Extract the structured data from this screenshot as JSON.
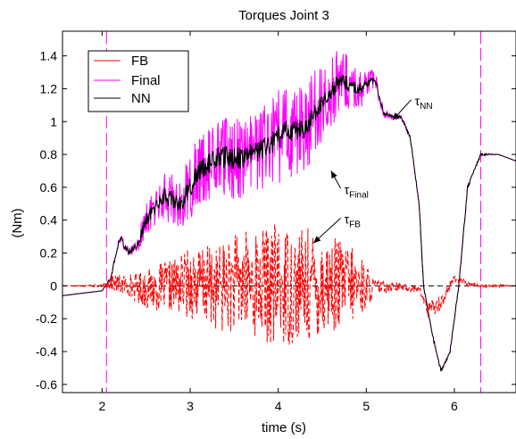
{
  "chart_data": {
    "type": "line",
    "title": "Torques Joint 3",
    "xlabel": "time (s)",
    "ylabel": "(Nm)",
    "xlim": [
      1.55,
      6.7
    ],
    "ylim": [
      -0.65,
      1.55
    ],
    "xticks": [
      "2",
      "3",
      "4",
      "5",
      "6"
    ],
    "xtick_values": [
      2,
      3,
      4,
      5,
      6
    ],
    "yticks": [
      "-0.6",
      "-0.4",
      "-0.2",
      "0",
      "0.2",
      "0.4",
      "0.6",
      "0.8",
      "1",
      "1.2",
      "1.4"
    ],
    "ytick_values": [
      -0.6,
      -0.4,
      -0.2,
      0,
      0.2,
      0.4,
      0.6,
      0.8,
      1,
      1.2,
      1.4
    ],
    "grid": false,
    "legend_position": "top-left",
    "vertical_markers": [
      2.05,
      6.3
    ],
    "series": [
      {
        "name": "FB",
        "color": "#ff0000",
        "style": "dashed-noisy",
        "x": [
          1.55,
          2.0,
          2.1,
          2.3,
          2.5,
          2.8,
          3.0,
          3.3,
          3.6,
          4.0,
          4.3,
          4.6,
          4.9,
          5.1,
          5.3,
          5.6,
          5.7,
          5.85,
          6.0,
          6.1,
          6.3,
          6.5,
          6.7
        ],
        "values": [
          0.0,
          0.0,
          0.02,
          0.0,
          -0.02,
          0.0,
          0.02,
          -0.01,
          0.02,
          0.0,
          0.0,
          0.01,
          0.0,
          -0.01,
          0.0,
          -0.02,
          -0.15,
          -0.1,
          0.05,
          0.02,
          0.0,
          0.0,
          0.0
        ],
        "noise_amplitude": [
          0.0,
          0.01,
          0.05,
          0.07,
          0.12,
          0.16,
          0.22,
          0.26,
          0.32,
          0.38,
          0.36,
          0.3,
          0.22,
          0.05,
          0.03,
          0.02,
          0.05,
          0.05,
          0.02,
          0.02,
          0.01,
          0.01,
          0.0
        ]
      },
      {
        "name": "Final",
        "color": "#ff00ff",
        "style": "solid-noisy",
        "x": [
          1.55,
          2.0,
          2.1,
          2.2,
          2.3,
          2.4,
          2.5,
          2.7,
          2.9,
          3.1,
          3.3,
          3.6,
          3.9,
          4.1,
          4.3,
          4.5,
          4.7,
          4.9,
          5.1,
          5.2,
          5.4,
          5.5,
          5.6,
          5.65,
          5.75,
          5.85,
          5.95,
          6.05,
          6.15,
          6.3,
          6.5,
          6.7
        ],
        "values": [
          -0.06,
          -0.03,
          0.05,
          0.3,
          0.2,
          0.25,
          0.4,
          0.55,
          0.5,
          0.7,
          0.78,
          0.78,
          0.85,
          0.95,
          0.95,
          1.12,
          1.25,
          1.2,
          1.25,
          1.05,
          1.02,
          0.9,
          0.5,
          0.0,
          -0.3,
          -0.52,
          -0.4,
          0.0,
          0.6,
          0.8,
          0.8,
          0.76
        ],
        "noise_amplitude": [
          0.0,
          0.0,
          0.01,
          0.03,
          0.03,
          0.06,
          0.1,
          0.14,
          0.18,
          0.22,
          0.24,
          0.26,
          0.28,
          0.3,
          0.28,
          0.25,
          0.2,
          0.14,
          0.06,
          0.03,
          0.02,
          0.01,
          0.01,
          0.01,
          0.01,
          0.01,
          0.01,
          0.01,
          0.01,
          0.01,
          0.0,
          0.0
        ]
      },
      {
        "name": "NN",
        "color": "#000000",
        "style": "solid-light-noise",
        "x": [
          1.55,
          2.0,
          2.1,
          2.2,
          2.3,
          2.4,
          2.5,
          2.7,
          2.9,
          3.1,
          3.3,
          3.6,
          3.9,
          4.1,
          4.3,
          4.5,
          4.7,
          4.9,
          5.1,
          5.2,
          5.4,
          5.5,
          5.6,
          5.65,
          5.75,
          5.85,
          5.95,
          6.05,
          6.15,
          6.3,
          6.5,
          6.7
        ],
        "values": [
          -0.06,
          -0.03,
          0.05,
          0.3,
          0.2,
          0.25,
          0.4,
          0.55,
          0.5,
          0.7,
          0.78,
          0.78,
          0.85,
          0.95,
          0.95,
          1.12,
          1.25,
          1.2,
          1.25,
          1.05,
          1.02,
          0.9,
          0.5,
          0.0,
          -0.3,
          -0.52,
          -0.4,
          0.0,
          0.6,
          0.8,
          0.8,
          0.76
        ],
        "noise_amplitude": [
          0.0,
          0.0,
          0.01,
          0.02,
          0.02,
          0.03,
          0.04,
          0.05,
          0.06,
          0.06,
          0.07,
          0.07,
          0.07,
          0.07,
          0.06,
          0.05,
          0.05,
          0.04,
          0.02,
          0.01,
          0.01,
          0.01,
          0.01,
          0.01,
          0.01,
          0.01,
          0.01,
          0.01,
          0.01,
          0.01,
          0.0,
          0.0
        ]
      }
    ],
    "annotations": [
      {
        "base": "τ",
        "sub": "NN",
        "text_x": 5.55,
        "text_y": 1.1,
        "arrow_to_x": 5.3,
        "arrow_to_y": 1.01
      },
      {
        "base": "τ",
        "sub": "Final",
        "text_x": 4.75,
        "text_y": 0.56,
        "arrow_to_x": 4.6,
        "arrow_to_y": 0.7
      },
      {
        "base": "τ",
        "sub": "FB",
        "text_x": 4.75,
        "text_y": 0.38,
        "arrow_to_x": 4.4,
        "arrow_to_y": 0.26
      }
    ]
  }
}
